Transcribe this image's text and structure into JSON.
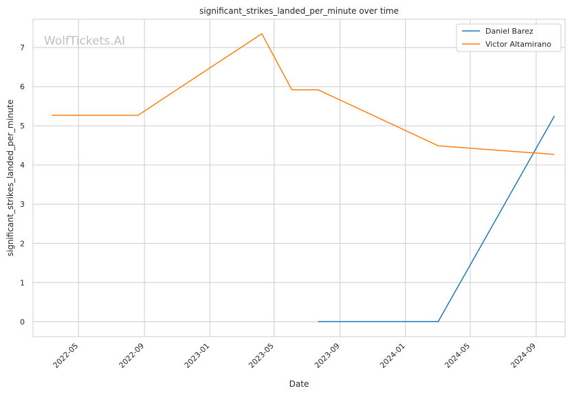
{
  "chart_data": {
    "type": "line",
    "title": "significant_strikes_landed_per_minute over time",
    "xlabel": "Date",
    "ylabel": "significant_strikes_landed_per_minute",
    "watermark": "WolfTickets.AI",
    "x_range": [
      "2022-02-05",
      "2024-10-25"
    ],
    "ylim": [
      -0.38,
      7.72
    ],
    "x_ticks": [
      "2022-05",
      "2022-09",
      "2023-01",
      "2023-05",
      "2023-09",
      "2024-01",
      "2024-05",
      "2024-09"
    ],
    "y_ticks": [
      0,
      1,
      2,
      3,
      4,
      5,
      6,
      7
    ],
    "grid": true,
    "legend_position": "top-right",
    "series": [
      {
        "name": "Daniel Barez",
        "color": "#1f77b4",
        "points": [
          {
            "x": "2023-07-22",
            "y": 0
          },
          {
            "x": "2024-03-02",
            "y": 0
          },
          {
            "x": "2024-10-05",
            "y": 5.25
          }
        ]
      },
      {
        "name": "Victor Altamirano",
        "color": "#ff7f0e",
        "points": [
          {
            "x": "2022-03-12",
            "y": 5.27
          },
          {
            "x": "2022-08-20",
            "y": 5.27
          },
          {
            "x": "2023-04-08",
            "y": 7.35
          },
          {
            "x": "2023-06-03",
            "y": 5.92
          },
          {
            "x": "2023-07-22",
            "y": 5.92
          },
          {
            "x": "2024-03-02",
            "y": 4.49
          },
          {
            "x": "2024-10-05",
            "y": 4.27
          }
        ]
      }
    ]
  }
}
